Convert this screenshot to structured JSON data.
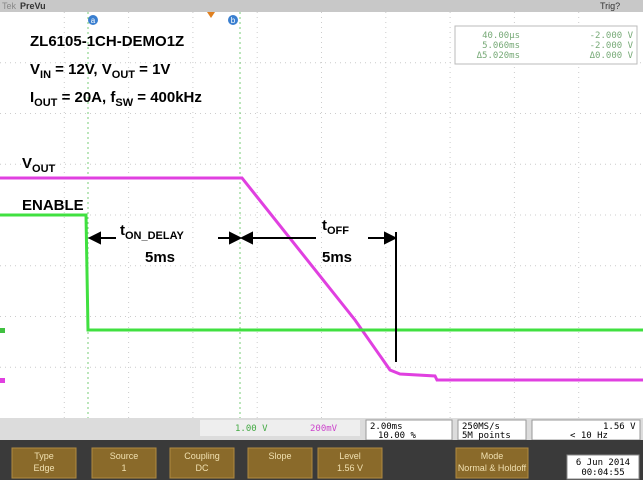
{
  "top_bar": {
    "brand": "Tek",
    "mode": "PreVu",
    "trigger_state": "Trig?"
  },
  "cursors": {
    "a": "a",
    "b": "b"
  },
  "annotations": {
    "title": "ZL6105-1CH-DEMO1Z",
    "line2": [
      {
        "text": "V"
      },
      {
        "text": "IN",
        "sub": true
      },
      {
        "text": " = 12V, V"
      },
      {
        "text": "OUT",
        "sub": true
      },
      {
        "text": " = 1V"
      }
    ],
    "line3": [
      {
        "text": "I"
      },
      {
        "text": "OUT",
        "sub": true
      },
      {
        "text": " = 20A, f"
      },
      {
        "text": "SW",
        "sub": true
      },
      {
        "text": " = 400kHz"
      }
    ],
    "vout": [
      {
        "text": "V"
      },
      {
        "text": "OUT",
        "sub": true
      }
    ],
    "enable": "ENABLE",
    "t_on": [
      {
        "text": "t"
      },
      {
        "text": "ON_DELAY",
        "sub": true
      }
    ],
    "t_on_value": "5ms",
    "t_off": [
      {
        "text": "t"
      },
      {
        "text": "OFF",
        "sub": true
      }
    ],
    "t_off_value": "5ms"
  },
  "cursor_readout": [
    [
      "40.00µs",
      "-2.000 V"
    ],
    [
      "5.060ms",
      "-2.000 V"
    ],
    [
      "Δ5.020ms",
      "Δ0.000 V"
    ]
  ],
  "status": {
    "ch1_scale": "1.00 V",
    "ch4_scale": "200mV",
    "timebase": "2.00ms",
    "position": "10.00 %",
    "sample_rate": "250MS/s",
    "record": "5M points",
    "trigger_level": "1.56 V",
    "trigger_freq": "< 10 Hz"
  },
  "menu": [
    {
      "title": "Type",
      "value": "Edge"
    },
    {
      "title": "Source",
      "value": "1"
    },
    {
      "title": "Coupling",
      "value": "DC"
    },
    {
      "title": "Slope",
      "value": ""
    },
    {
      "title": "Level",
      "value": "1.56 V"
    },
    {
      "title": "Mode",
      "value": "Normal & Holdoff"
    }
  ],
  "datetime": {
    "date": "6 Jun 2014",
    "time": "00:04:55"
  }
}
